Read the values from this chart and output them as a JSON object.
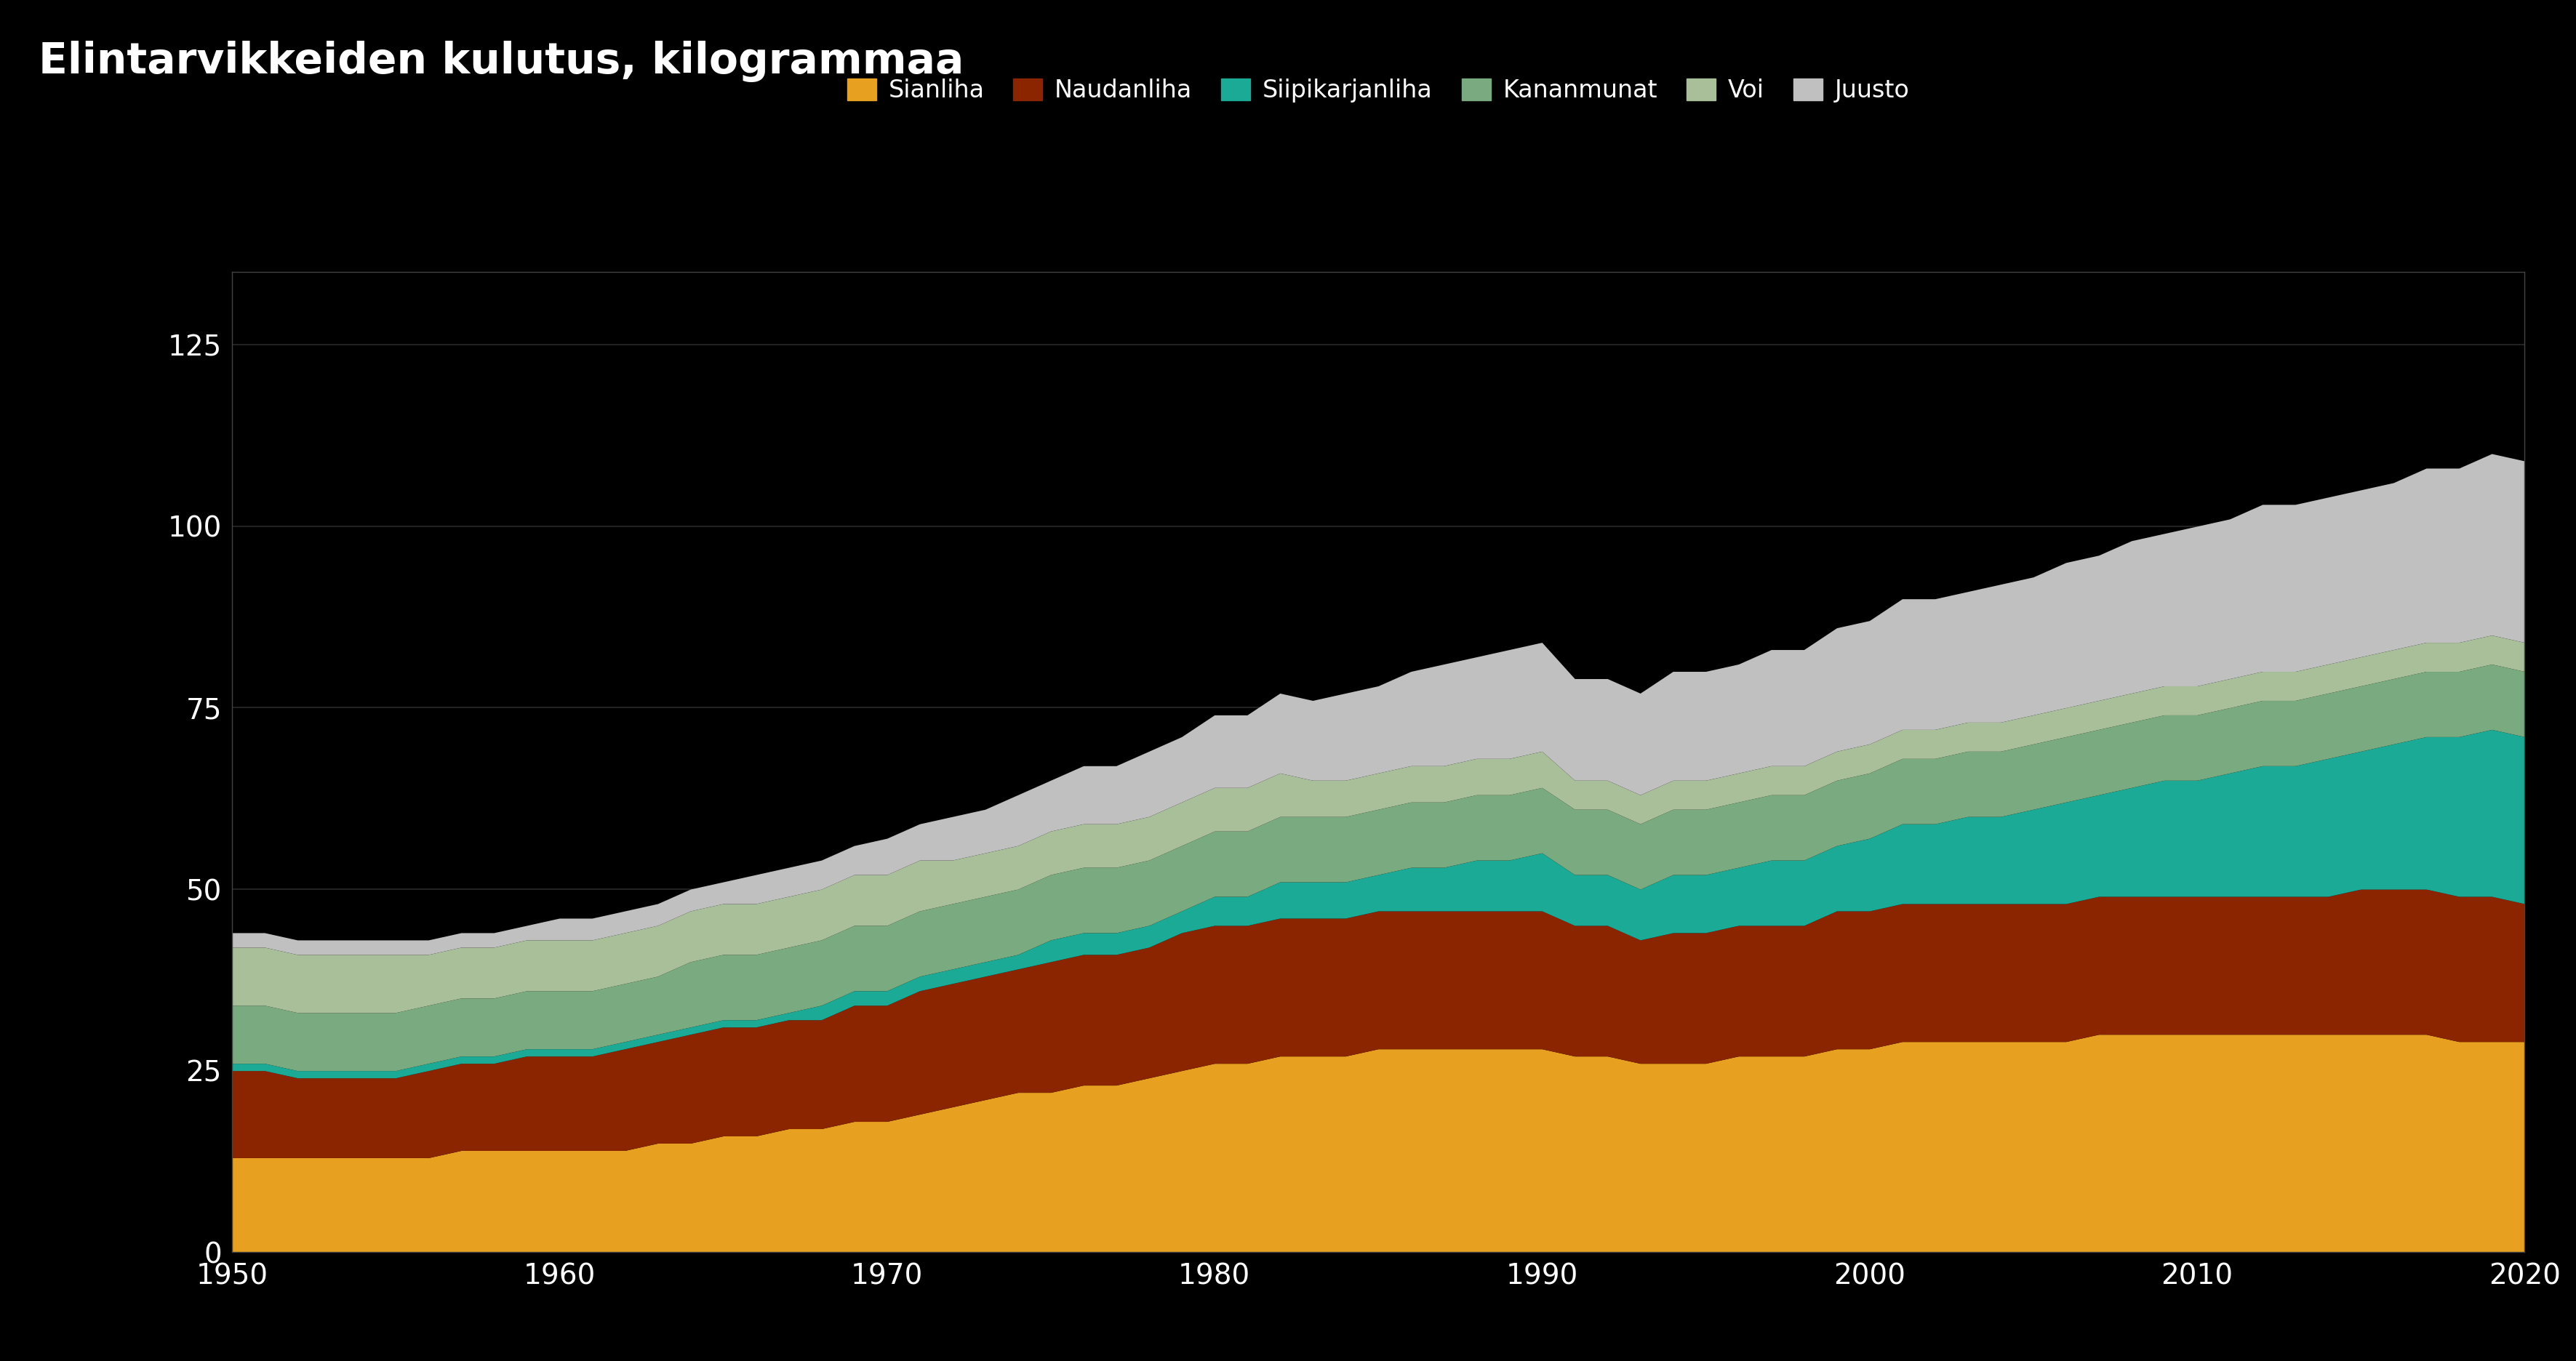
{
  "title": "Elintarvikkeiden kulutus, kilogrammaa",
  "background_color": "#000000",
  "text_color": "#ffffff",
  "grid_color": "#2a2a2a",
  "years": [
    1950,
    1951,
    1952,
    1953,
    1954,
    1955,
    1956,
    1957,
    1958,
    1959,
    1960,
    1961,
    1962,
    1963,
    1964,
    1965,
    1966,
    1967,
    1968,
    1969,
    1970,
    1971,
    1972,
    1973,
    1974,
    1975,
    1976,
    1977,
    1978,
    1979,
    1980,
    1981,
    1982,
    1983,
    1984,
    1985,
    1986,
    1987,
    1988,
    1989,
    1990,
    1991,
    1992,
    1993,
    1994,
    1995,
    1996,
    1997,
    1998,
    1999,
    2000,
    2001,
    2002,
    2003,
    2004,
    2005,
    2006,
    2007,
    2008,
    2009,
    2010,
    2011,
    2012,
    2013,
    2014,
    2015,
    2016,
    2017,
    2018,
    2019,
    2020
  ],
  "series": [
    {
      "name": "Sianliha",
      "color": "#e8a020",
      "values": [
        13,
        13,
        13,
        13,
        13,
        13,
        13,
        14,
        14,
        14,
        14,
        14,
        14,
        15,
        15,
        16,
        16,
        17,
        17,
        18,
        18,
        19,
        20,
        21,
        22,
        22,
        23,
        23,
        24,
        25,
        26,
        26,
        27,
        27,
        27,
        28,
        28,
        28,
        28,
        28,
        28,
        27,
        27,
        26,
        26,
        26,
        27,
        27,
        27,
        28,
        28,
        29,
        29,
        29,
        29,
        29,
        29,
        30,
        30,
        30,
        30,
        30,
        30,
        30,
        30,
        30,
        30,
        30,
        29,
        29,
        29
      ]
    },
    {
      "name": "Naudanliha",
      "color": "#8b2500",
      "values": [
        12,
        12,
        11,
        11,
        11,
        11,
        12,
        12,
        12,
        13,
        13,
        13,
        14,
        14,
        15,
        15,
        15,
        15,
        15,
        16,
        16,
        17,
        17,
        17,
        17,
        18,
        18,
        18,
        18,
        19,
        19,
        19,
        19,
        19,
        19,
        19,
        19,
        19,
        19,
        19,
        19,
        18,
        18,
        17,
        18,
        18,
        18,
        18,
        18,
        19,
        19,
        19,
        19,
        19,
        19,
        19,
        19,
        19,
        19,
        19,
        19,
        19,
        19,
        19,
        19,
        20,
        20,
        20,
        20,
        20,
        19
      ]
    },
    {
      "name": "Siipikarjanliha",
      "color": "#1aaa96",
      "values": [
        1,
        1,
        1,
        1,
        1,
        1,
        1,
        1,
        1,
        1,
        1,
        1,
        1,
        1,
        1,
        1,
        1,
        1,
        2,
        2,
        2,
        2,
        2,
        2,
        2,
        3,
        3,
        3,
        3,
        3,
        4,
        4,
        5,
        5,
        5,
        5,
        6,
        6,
        7,
        7,
        8,
        7,
        7,
        7,
        8,
        8,
        8,
        9,
        9,
        9,
        10,
        11,
        11,
        12,
        12,
        13,
        14,
        14,
        15,
        16,
        16,
        17,
        18,
        18,
        19,
        19,
        20,
        21,
        22,
        23,
        23
      ]
    },
    {
      "name": "Kananmunat",
      "color": "#7aab80",
      "values": [
        8,
        8,
        8,
        8,
        8,
        8,
        8,
        8,
        8,
        8,
        8,
        8,
        8,
        8,
        9,
        9,
        9,
        9,
        9,
        9,
        9,
        9,
        9,
        9,
        9,
        9,
        9,
        9,
        9,
        9,
        9,
        9,
        9,
        9,
        9,
        9,
        9,
        9,
        9,
        9,
        9,
        9,
        9,
        9,
        9,
        9,
        9,
        9,
        9,
        9,
        9,
        9,
        9,
        9,
        9,
        9,
        9,
        9,
        9,
        9,
        9,
        9,
        9,
        9,
        9,
        9,
        9,
        9,
        9,
        9,
        9
      ]
    },
    {
      "name": "Voi",
      "color": "#a8bf9a",
      "values": [
        8,
        8,
        8,
        8,
        8,
        8,
        7,
        7,
        7,
        7,
        7,
        7,
        7,
        7,
        7,
        7,
        7,
        7,
        7,
        7,
        7,
        7,
        6,
        6,
        6,
        6,
        6,
        6,
        6,
        6,
        6,
        6,
        6,
        5,
        5,
        5,
        5,
        5,
        5,
        5,
        5,
        4,
        4,
        4,
        4,
        4,
        4,
        4,
        4,
        4,
        4,
        4,
        4,
        4,
        4,
        4,
        4,
        4,
        4,
        4,
        4,
        4,
        4,
        4,
        4,
        4,
        4,
        4,
        4,
        4,
        4
      ]
    },
    {
      "name": "Juusto",
      "color": "#c0c0c0",
      "values": [
        2,
        2,
        2,
        2,
        2,
        2,
        2,
        2,
        2,
        2,
        3,
        3,
        3,
        3,
        3,
        3,
        4,
        4,
        4,
        4,
        5,
        5,
        6,
        6,
        7,
        7,
        8,
        8,
        9,
        9,
        10,
        10,
        11,
        11,
        12,
        12,
        13,
        14,
        14,
        15,
        15,
        14,
        14,
        14,
        15,
        15,
        15,
        16,
        16,
        17,
        17,
        18,
        18,
        18,
        19,
        19,
        20,
        20,
        21,
        21,
        22,
        22,
        23,
        23,
        23,
        23,
        23,
        24,
        24,
        25,
        25
      ]
    }
  ],
  "xlim": [
    1950,
    2020
  ],
  "ylim": [
    0,
    135
  ],
  "yticks": [
    0,
    25,
    50,
    75,
    100,
    125
  ],
  "xticks": [
    1950,
    1960,
    1970,
    1980,
    1990,
    2000,
    2010,
    2020
  ],
  "title_fontsize": 42,
  "legend_fontsize": 24,
  "tick_fontsize": 28
}
